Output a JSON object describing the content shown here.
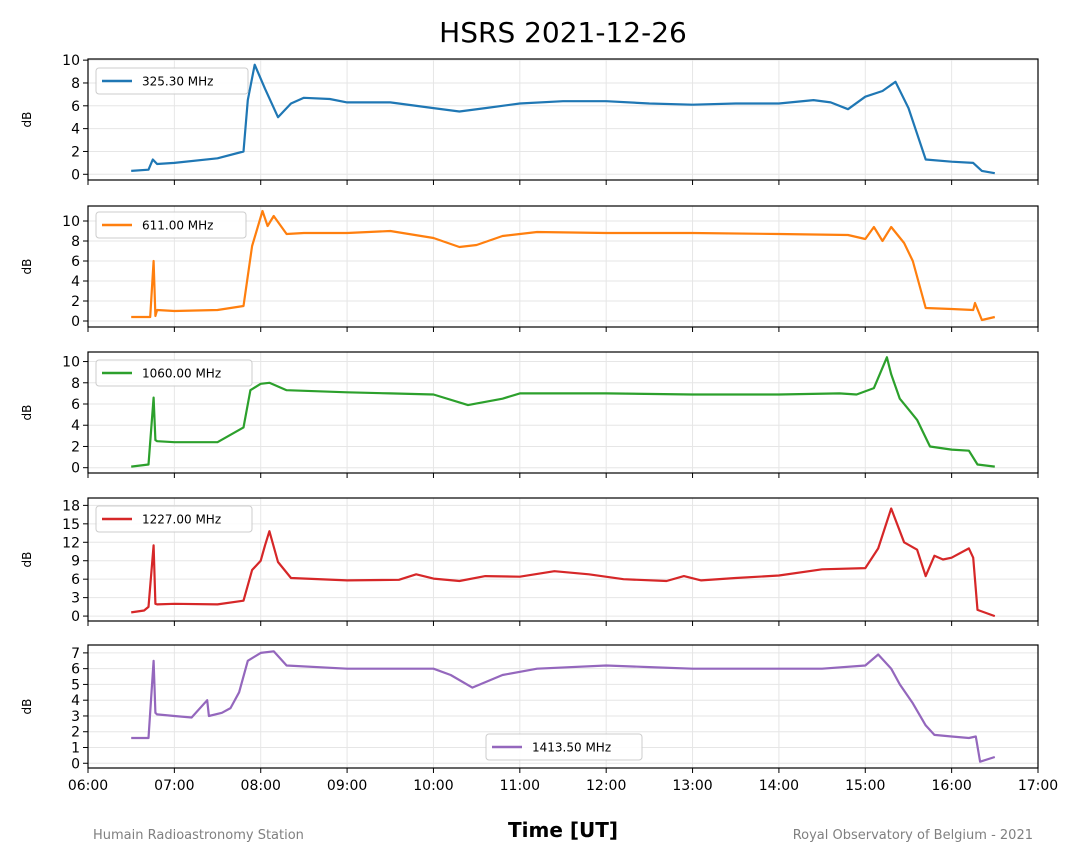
{
  "figure": {
    "title": "HSRS 2021-12-26",
    "xlabel": "Time [UT]",
    "footer_left": "Humain Radioastronomy Station",
    "footer_right": "Royal Observatory of Belgium - 2021"
  },
  "chart_data": [
    {
      "type": "line",
      "series": [
        {
          "name": "325.30 MHz",
          "color": "#1f77b4"
        }
      ],
      "ylabel": "dB",
      "yticks": [
        0,
        2,
        4,
        6,
        8,
        10
      ],
      "ylim": [
        -0.5,
        10.1
      ],
      "legend": "upper-left",
      "xticks": [
        "06:00",
        "07:00",
        "08:00",
        "09:00",
        "10:00",
        "11:00",
        "12:00",
        "13:00",
        "14:00",
        "15:00",
        "16:00",
        "17:00"
      ],
      "xlim": [
        6.0,
        17.0
      ],
      "grid": true,
      "x": [
        6.5,
        6.7,
        6.75,
        6.8,
        7.0,
        7.5,
        7.8,
        7.85,
        7.93,
        8.05,
        8.2,
        8.35,
        8.5,
        8.8,
        9.0,
        9.5,
        10.0,
        10.3,
        10.6,
        11.0,
        11.5,
        12.0,
        12.5,
        13.0,
        13.5,
        14.0,
        14.4,
        14.6,
        14.8,
        15.0,
        15.2,
        15.35,
        15.5,
        15.7,
        16.0,
        16.25,
        16.35,
        16.5
      ],
      "y": [
        0.3,
        0.4,
        1.3,
        0.9,
        1.0,
        1.4,
        2.0,
        6.5,
        9.6,
        7.5,
        5.0,
        6.2,
        6.7,
        6.6,
        6.3,
        6.3,
        5.8,
        5.5,
        5.8,
        6.2,
        6.4,
        6.4,
        6.2,
        6.1,
        6.2,
        6.2,
        6.5,
        6.3,
        5.7,
        6.8,
        7.3,
        8.1,
        5.8,
        1.3,
        1.1,
        1.0,
        0.3,
        0.1
      ]
    },
    {
      "type": "line",
      "series": [
        {
          "name": "611.00 MHz",
          "color": "#ff7f0e"
        }
      ],
      "ylabel": "dB",
      "yticks": [
        0,
        2,
        4,
        6,
        8,
        10
      ],
      "ylim": [
        -0.6,
        11.5
      ],
      "legend": "upper-left",
      "xticks": [
        "06:00",
        "07:00",
        "08:00",
        "09:00",
        "10:00",
        "11:00",
        "12:00",
        "13:00",
        "14:00",
        "15:00",
        "16:00",
        "17:00"
      ],
      "xlim": [
        6.0,
        17.0
      ],
      "grid": true,
      "x": [
        6.5,
        6.72,
        6.76,
        6.78,
        6.8,
        7.0,
        7.5,
        7.8,
        7.9,
        8.02,
        8.08,
        8.15,
        8.3,
        8.5,
        9.0,
        9.5,
        10.0,
        10.3,
        10.5,
        10.8,
        11.2,
        12.0,
        13.0,
        14.0,
        14.8,
        15.0,
        15.1,
        15.2,
        15.3,
        15.45,
        15.55,
        15.7,
        16.0,
        16.25,
        16.27,
        16.35,
        16.5
      ],
      "y": [
        0.4,
        0.4,
        6.0,
        0.5,
        1.1,
        1.0,
        1.1,
        1.5,
        7.5,
        11.0,
        9.5,
        10.5,
        8.7,
        8.8,
        8.8,
        9.0,
        8.3,
        7.4,
        7.6,
        8.5,
        8.9,
        8.8,
        8.8,
        8.7,
        8.6,
        8.2,
        9.4,
        8.0,
        9.4,
        7.8,
        6.0,
        1.3,
        1.2,
        1.1,
        1.8,
        0.1,
        0.4
      ]
    },
    {
      "type": "line",
      "series": [
        {
          "name": "1060.00 MHz",
          "color": "#2ca02c"
        }
      ],
      "ylabel": "dB",
      "yticks": [
        0,
        2,
        4,
        6,
        8,
        10
      ],
      "ylim": [
        -0.5,
        10.9
      ],
      "legend": "upper-left",
      "xticks": [
        "06:00",
        "07:00",
        "08:00",
        "09:00",
        "10:00",
        "11:00",
        "12:00",
        "13:00",
        "14:00",
        "15:00",
        "16:00",
        "17:00"
      ],
      "xlim": [
        6.0,
        17.0
      ],
      "grid": true,
      "x": [
        6.5,
        6.7,
        6.76,
        6.78,
        6.8,
        7.0,
        7.5,
        7.8,
        7.88,
        8.0,
        8.1,
        8.3,
        9.0,
        9.5,
        10.0,
        10.4,
        10.8,
        11.0,
        12.0,
        13.0,
        14.0,
        14.7,
        14.9,
        15.1,
        15.25,
        15.3,
        15.4,
        15.5,
        15.6,
        15.75,
        16.0,
        16.2,
        16.3,
        16.5
      ],
      "y": [
        0.1,
        0.3,
        6.6,
        2.6,
        2.5,
        2.4,
        2.4,
        3.8,
        7.3,
        7.9,
        8.0,
        7.3,
        7.1,
        7.0,
        6.9,
        5.9,
        6.5,
        7.0,
        7.0,
        6.9,
        6.9,
        7.0,
        6.9,
        7.5,
        10.4,
        8.8,
        6.5,
        5.5,
        4.5,
        2.0,
        1.7,
        1.6,
        0.3,
        0.1
      ]
    },
    {
      "type": "line",
      "series": [
        {
          "name": "1227.00 MHz",
          "color": "#d62728"
        }
      ],
      "ylabel": "dB",
      "yticks": [
        0,
        3,
        6,
        9,
        12,
        15,
        18
      ],
      "ylim": [
        -0.8,
        19.2
      ],
      "legend": "upper-left",
      "xticks": [
        "06:00",
        "07:00",
        "08:00",
        "09:00",
        "10:00",
        "11:00",
        "12:00",
        "13:00",
        "14:00",
        "15:00",
        "16:00",
        "17:00"
      ],
      "xlim": [
        6.0,
        17.0
      ],
      "grid": true,
      "x": [
        6.5,
        6.65,
        6.7,
        6.76,
        6.78,
        6.8,
        7.0,
        7.5,
        7.8,
        7.9,
        8.0,
        8.05,
        8.1,
        8.2,
        8.35,
        9.0,
        9.6,
        9.8,
        10.0,
        10.3,
        10.6,
        11.0,
        11.4,
        11.8,
        12.2,
        12.7,
        12.9,
        13.1,
        13.5,
        14.0,
        14.5,
        15.0,
        15.15,
        15.3,
        15.45,
        15.6,
        15.7,
        15.8,
        15.9,
        16.0,
        16.2,
        16.25,
        16.3,
        16.5
      ],
      "y": [
        0.6,
        0.9,
        1.5,
        11.5,
        2.0,
        1.9,
        2.0,
        1.9,
        2.5,
        7.5,
        9.0,
        11.5,
        13.8,
        8.8,
        6.2,
        5.8,
        5.9,
        6.8,
        6.1,
        5.7,
        6.5,
        6.4,
        7.3,
        6.8,
        6.0,
        5.7,
        6.5,
        5.8,
        6.2,
        6.6,
        7.6,
        7.8,
        11.0,
        17.5,
        12.0,
        10.8,
        6.5,
        9.8,
        9.2,
        9.5,
        11.0,
        9.5,
        1.0,
        0.0
      ]
    },
    {
      "type": "line",
      "series": [
        {
          "name": "1413.50 MHz",
          "color": "#9467bd"
        }
      ],
      "ylabel": "dB",
      "yticks": [
        0,
        1,
        2,
        3,
        4,
        5,
        6,
        7
      ],
      "ylim": [
        -0.3,
        7.5
      ],
      "legend": "lower-center",
      "xticks": [
        "06:00",
        "07:00",
        "08:00",
        "09:00",
        "10:00",
        "11:00",
        "12:00",
        "13:00",
        "14:00",
        "15:00",
        "16:00",
        "17:00"
      ],
      "xlim": [
        6.0,
        17.0
      ],
      "grid": true,
      "x": [
        6.5,
        6.7,
        6.76,
        6.78,
        6.8,
        7.0,
        7.2,
        7.38,
        7.4,
        7.55,
        7.65,
        7.75,
        7.85,
        8.0,
        8.15,
        8.3,
        9.0,
        9.5,
        10.0,
        10.2,
        10.45,
        10.8,
        11.2,
        12.0,
        12.5,
        13.0,
        14.0,
        14.5,
        15.0,
        15.15,
        15.3,
        15.4,
        15.55,
        15.7,
        15.8,
        16.0,
        16.2,
        16.28,
        16.33,
        16.5
      ],
      "y": [
        1.6,
        1.6,
        6.5,
        3.2,
        3.1,
        3.0,
        2.9,
        4.0,
        3.0,
        3.2,
        3.5,
        4.5,
        6.5,
        7.0,
        7.1,
        6.2,
        6.0,
        6.0,
        6.0,
        5.6,
        4.8,
        5.6,
        6.0,
        6.2,
        6.1,
        6.0,
        6.0,
        6.0,
        6.2,
        6.9,
        6.0,
        5.0,
        3.8,
        2.4,
        1.8,
        1.7,
        1.6,
        1.7,
        0.1,
        0.4
      ]
    }
  ]
}
